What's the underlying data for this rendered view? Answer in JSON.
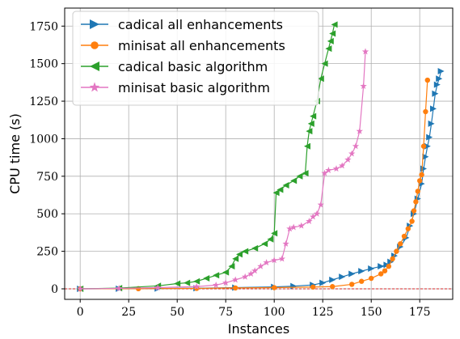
{
  "chart_data": {
    "type": "line",
    "title": "",
    "xlabel": "Instances",
    "ylabel": "CPU time (s)",
    "xlim": [
      -8,
      192
    ],
    "ylim": [
      -70,
      1870
    ],
    "xticks": [
      0,
      25,
      50,
      75,
      100,
      125,
      150,
      175
    ],
    "yticks": [
      0,
      250,
      500,
      750,
      1000,
      1250,
      1500,
      1750
    ],
    "xtick_labels": [
      "0",
      "25",
      "50",
      "75",
      "100",
      "125",
      "150",
      "175"
    ],
    "ytick_labels": [
      "0",
      "250",
      "500",
      "750",
      "1000",
      "1250",
      "1500",
      "1750"
    ],
    "grid": true,
    "reference_line": {
      "y": 0,
      "color": "#d62728",
      "style": "dashed"
    },
    "legend_position": "top-left",
    "series": [
      {
        "name": "cadical all enhancements",
        "color": "#1f77b4",
        "marker": "triangle-right",
        "points": [
          [
            0,
            0
          ],
          [
            20,
            1
          ],
          [
            40,
            2
          ],
          [
            60,
            4
          ],
          [
            80,
            8
          ],
          [
            100,
            13
          ],
          [
            110,
            18
          ],
          [
            120,
            26
          ],
          [
            125,
            40
          ],
          [
            130,
            60
          ],
          [
            135,
            80
          ],
          [
            140,
            100
          ],
          [
            145,
            118
          ],
          [
            150,
            135
          ],
          [
            155,
            150
          ],
          [
            158,
            160
          ],
          [
            160,
            180
          ],
          [
            162,
            220
          ],
          [
            165,
            280
          ],
          [
            168,
            340
          ],
          [
            170,
            420
          ],
          [
            172,
            500
          ],
          [
            174,
            600
          ],
          [
            176,
            700
          ],
          [
            177,
            800
          ],
          [
            178,
            880
          ],
          [
            179,
            950
          ],
          [
            180,
            1010
          ],
          [
            181,
            1100
          ],
          [
            182,
            1200
          ],
          [
            183,
            1300
          ],
          [
            184,
            1360
          ],
          [
            185,
            1400
          ],
          [
            186,
            1450
          ]
        ]
      },
      {
        "name": "minisat all enhancements",
        "color": "#ff7f0e",
        "marker": "circle",
        "points": [
          [
            0,
            0
          ],
          [
            30,
            1
          ],
          [
            60,
            3
          ],
          [
            80,
            6
          ],
          [
            100,
            8
          ],
          [
            120,
            12
          ],
          [
            130,
            15
          ],
          [
            140,
            30
          ],
          [
            145,
            50
          ],
          [
            150,
            70
          ],
          [
            155,
            100
          ],
          [
            157,
            120
          ],
          [
            159,
            150
          ],
          [
            161,
            200
          ],
          [
            163,
            250
          ],
          [
            165,
            300
          ],
          [
            167,
            350
          ],
          [
            169,
            400
          ],
          [
            171,
            450
          ],
          [
            172,
            520
          ],
          [
            173,
            580
          ],
          [
            174,
            650
          ],
          [
            175,
            720
          ],
          [
            176,
            760
          ],
          [
            177,
            950
          ],
          [
            178,
            1180
          ],
          [
            179,
            1390
          ]
        ]
      },
      {
        "name": "cadical basic algorithm",
        "color": "#2ca02c",
        "marker": "triangle-left",
        "points": [
          [
            0,
            0
          ],
          [
            20,
            5
          ],
          [
            40,
            20
          ],
          [
            50,
            35
          ],
          [
            55,
            40
          ],
          [
            60,
            50
          ],
          [
            65,
            70
          ],
          [
            70,
            90
          ],
          [
            75,
            110
          ],
          [
            78,
            150
          ],
          [
            80,
            200
          ],
          [
            82,
            230
          ],
          [
            85,
            250
          ],
          [
            90,
            270
          ],
          [
            95,
            300
          ],
          [
            98,
            330
          ],
          [
            100,
            370
          ],
          [
            101,
            640
          ],
          [
            103,
            660
          ],
          [
            106,
            690
          ],
          [
            110,
            720
          ],
          [
            113,
            750
          ],
          [
            116,
            770
          ],
          [
            117,
            950
          ],
          [
            118,
            1050
          ],
          [
            119,
            1100
          ],
          [
            120,
            1150
          ],
          [
            122,
            1250
          ],
          [
            124,
            1400
          ],
          [
            126,
            1500
          ],
          [
            128,
            1600
          ],
          [
            129,
            1650
          ],
          [
            130,
            1700
          ],
          [
            131,
            1760
          ]
        ]
      },
      {
        "name": "minisat basic algorithm",
        "color": "#e377c2",
        "marker": "star",
        "points": [
          [
            0,
            0
          ],
          [
            20,
            3
          ],
          [
            40,
            8
          ],
          [
            60,
            15
          ],
          [
            70,
            25
          ],
          [
            75,
            40
          ],
          [
            80,
            60
          ],
          [
            85,
            80
          ],
          [
            88,
            100
          ],
          [
            90,
            120
          ],
          [
            93,
            150
          ],
          [
            96,
            175
          ],
          [
            100,
            190
          ],
          [
            104,
            200
          ],
          [
            106,
            300
          ],
          [
            108,
            400
          ],
          [
            110,
            410
          ],
          [
            114,
            420
          ],
          [
            118,
            450
          ],
          [
            120,
            480
          ],
          [
            122,
            500
          ],
          [
            124,
            560
          ],
          [
            126,
            770
          ],
          [
            128,
            790
          ],
          [
            132,
            800
          ],
          [
            135,
            820
          ],
          [
            138,
            860
          ],
          [
            140,
            900
          ],
          [
            142,
            950
          ],
          [
            144,
            1050
          ],
          [
            146,
            1350
          ],
          [
            147,
            1580
          ]
        ]
      }
    ]
  }
}
